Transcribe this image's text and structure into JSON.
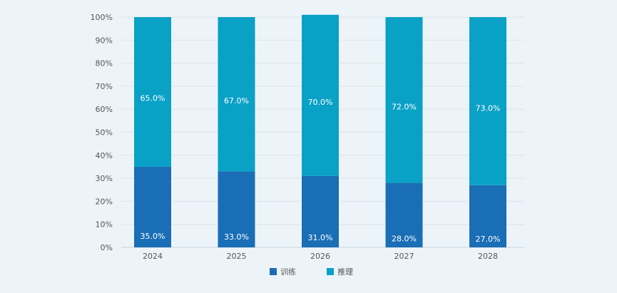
{
  "chart_data": {
    "type": "bar",
    "stacked": true,
    "categories": [
      "2024",
      "2025",
      "2026",
      "2027",
      "2028"
    ],
    "series": [
      {
        "name": "训练",
        "values": [
          35.0,
          33.0,
          31.0,
          28.0,
          27.0
        ],
        "color": "#1a6eb5"
      },
      {
        "name": "推理",
        "values": [
          65.0,
          67.0,
          70.0,
          72.0,
          73.0
        ],
        "color": "#0aa1c6"
      }
    ],
    "data_labels": {
      "训练": [
        "35.0%",
        "33.0%",
        "31.0%",
        "28.0%",
        "27.0%"
      ],
      "推理": [
        "65.0%",
        "67.0%",
        "70.0%",
        "72.0%",
        "73.0%"
      ]
    },
    "y_ticks": [
      "0%",
      "10%",
      "20%",
      "30%",
      "40%",
      "50%",
      "60%",
      "70%",
      "80%",
      "90%",
      "100%"
    ],
    "ylim": [
      0,
      100
    ],
    "grid": true,
    "legend_position": "bottom-center",
    "title": "",
    "xlabel": "",
    "ylabel": ""
  }
}
